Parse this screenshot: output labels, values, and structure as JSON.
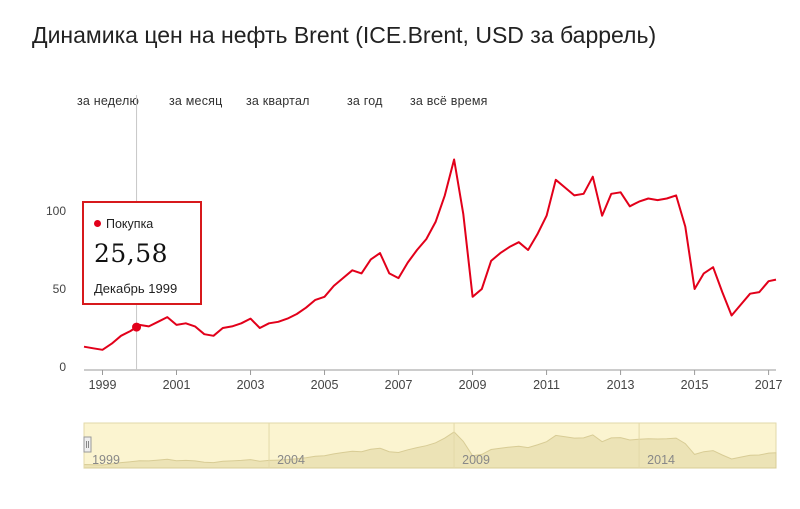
{
  "title": "Динамика цен на нефть Brent (ICE.Brent, USD за баррель)",
  "range_buttons": [
    "за неделю",
    "за месяц",
    "за квартал",
    "за год",
    "за всё время"
  ],
  "tooltip": {
    "series": "Покупка",
    "value": "25,58",
    "date": "Декабрь 1999"
  },
  "colors": {
    "line": "#e2001a",
    "tooltip_border": "#d7191c",
    "navigator_bg": "#fbf4d0",
    "navigator_area": "#ece3b6",
    "axis_text": "#444444"
  },
  "chart_data": {
    "type": "line",
    "series": [
      {
        "name": "Покупка",
        "points": [
          [
            1998.5,
            13
          ],
          [
            1998.75,
            12
          ],
          [
            1999.0,
            11
          ],
          [
            1999.25,
            15
          ],
          [
            1999.5,
            20
          ],
          [
            1999.75,
            23
          ],
          [
            1999.92,
            25.58
          ],
          [
            2000.0,
            27
          ],
          [
            2000.25,
            26
          ],
          [
            2000.5,
            29
          ],
          [
            2000.75,
            32
          ],
          [
            2001.0,
            27
          ],
          [
            2001.25,
            28
          ],
          [
            2001.5,
            26
          ],
          [
            2001.75,
            21
          ],
          [
            2002.0,
            20
          ],
          [
            2002.25,
            25
          ],
          [
            2002.5,
            26
          ],
          [
            2002.75,
            28
          ],
          [
            2003.0,
            31
          ],
          [
            2003.25,
            25
          ],
          [
            2003.5,
            28
          ],
          [
            2003.75,
            29
          ],
          [
            2004.0,
            31
          ],
          [
            2004.25,
            34
          ],
          [
            2004.5,
            38
          ],
          [
            2004.75,
            43
          ],
          [
            2005.0,
            45
          ],
          [
            2005.25,
            52
          ],
          [
            2005.5,
            57
          ],
          [
            2005.75,
            62
          ],
          [
            2006.0,
            60
          ],
          [
            2006.25,
            69
          ],
          [
            2006.5,
            73
          ],
          [
            2006.75,
            60
          ],
          [
            2007.0,
            57
          ],
          [
            2007.25,
            67
          ],
          [
            2007.5,
            75
          ],
          [
            2007.75,
            82
          ],
          [
            2008.0,
            93
          ],
          [
            2008.25,
            110
          ],
          [
            2008.5,
            133
          ],
          [
            2008.75,
            98
          ],
          [
            2009.0,
            45
          ],
          [
            2009.25,
            50
          ],
          [
            2009.5,
            68
          ],
          [
            2009.75,
            73
          ],
          [
            2010.0,
            77
          ],
          [
            2010.25,
            80
          ],
          [
            2010.5,
            75
          ],
          [
            2010.75,
            85
          ],
          [
            2011.0,
            97
          ],
          [
            2011.25,
            120
          ],
          [
            2011.5,
            115
          ],
          [
            2011.75,
            110
          ],
          [
            2012.0,
            111
          ],
          [
            2012.25,
            122
          ],
          [
            2012.5,
            97
          ],
          [
            2012.75,
            111
          ],
          [
            2013.0,
            112
          ],
          [
            2013.25,
            103
          ],
          [
            2013.5,
            106
          ],
          [
            2013.75,
            108
          ],
          [
            2014.0,
            107
          ],
          [
            2014.25,
            108
          ],
          [
            2014.5,
            110
          ],
          [
            2014.75,
            90
          ],
          [
            2015.0,
            50
          ],
          [
            2015.25,
            60
          ],
          [
            2015.5,
            64
          ],
          [
            2015.75,
            48
          ],
          [
            2016.0,
            33
          ],
          [
            2016.25,
            40
          ],
          [
            2016.5,
            47
          ],
          [
            2016.75,
            48
          ],
          [
            2017.0,
            55
          ],
          [
            2017.2,
            56
          ]
        ]
      }
    ],
    "highlight": {
      "x": 1999.92,
      "y": 25.58
    },
    "x_ticks": [
      "1999",
      "2001",
      "2003",
      "2005",
      "2007",
      "2009",
      "2011",
      "2013",
      "2015",
      "2017"
    ],
    "y_ticks": [
      "0",
      "50",
      "100"
    ],
    "xlim": [
      1998.5,
      2017.2
    ],
    "ylim": [
      0,
      140
    ],
    "navigator_ticks": [
      "1999",
      "2004",
      "2009",
      "2014"
    ]
  }
}
